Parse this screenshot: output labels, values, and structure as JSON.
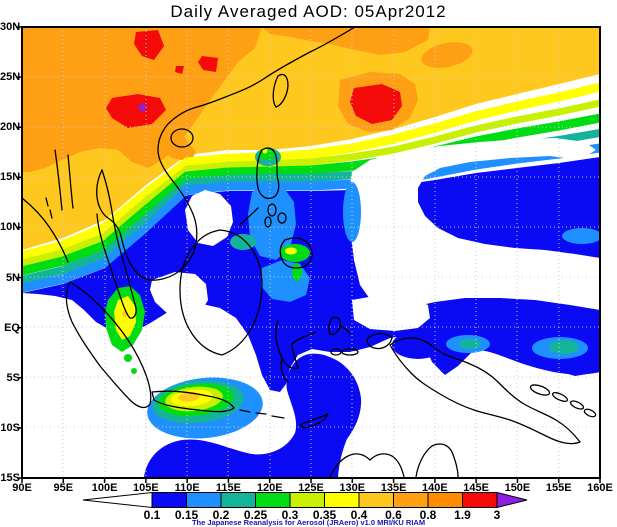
{
  "figure": {
    "title": "Daily Averaged AOD: 05Apr2012",
    "caption": "The Japanese Reanalysis for Aerosol (JRAero) v1.0 MRI/KU RIAM"
  },
  "chart_data": {
    "type": "heatmap",
    "title": "Daily Averaged AOD: 05Apr2012",
    "variable": "Aerosol Optical Depth (AOD), daily average",
    "date": "05Apr2012",
    "region": {
      "lon_range_deg_east": [
        90,
        160
      ],
      "lat_range_deg_north": [
        -15,
        30
      ]
    },
    "x_axis": {
      "ticks": [
        "90E",
        "95E",
        "100E",
        "105E",
        "110E",
        "115E",
        "120E",
        "125E",
        "130E",
        "135E",
        "140E",
        "145E",
        "150E",
        "155E",
        "160E"
      ]
    },
    "y_axis": {
      "ticks": [
        "30N",
        "25N",
        "20N",
        "15N",
        "10N",
        "5N",
        "EQ",
        "5S",
        "10S",
        "15S"
      ]
    },
    "grid": {
      "visible": true,
      "style": "dotted",
      "color": "#cccccc"
    },
    "colorbar": {
      "orientation": "horizontal",
      "boundaries": [
        "0.1",
        "0.15",
        "0.2",
        "0.25",
        "0.3",
        "0.35",
        "0.4",
        "0.6",
        "0.8",
        "1.9",
        "3"
      ],
      "colors": [
        "#0a0af5",
        "#1e90ff",
        "#14b49b",
        "#00dc14",
        "#c8f000",
        "#ffff00",
        "#ffc81e",
        "#ffa014",
        "#ff8c00",
        "#f50a0a"
      ],
      "under_color": "#ffffff",
      "over_color": "#8c1ee6"
    },
    "palette": {
      "blue": "#0a0af5",
      "dodger_blue": "#1e90ff",
      "teal": "#14b49b",
      "green": "#00dc14",
      "yellow_green": "#c8f000",
      "yellow": "#ffff00",
      "amber": "#ffc81e",
      "orange": "#ffa014",
      "dark_orange": "#ff8c00",
      "red": "#f50a0a",
      "purple": "#8c1ee6",
      "coastline": "#000000",
      "grid": "#cccccc",
      "background": "#ffffff"
    },
    "features": [
      "Heavy aerosol plume (AOD 0.6-3) over Myanmar, Thailand, Laos, northern Vietnam and southern China",
      "Red maxima (AOD 1.9-3) near 105E/28N, 112E/26N, 101-107E/20-23N and 130-136E/21-23N",
      "Small area above 3 (purple) near 104E/22N",
      "Transition band 0.15-0.4 sloping from ~13N at 105E up to ~22N at 160E",
      "AOD 0.1-0.2 over South China Sea, Philippines and western Pacific 5-15N",
      "Clear air (<0.1) over central South China Sea ~110-115E/8-14N, Philippine Sea 8-17N, equatorial west Pacific, Sumatra, SW Borneo, Banda/Arafura Seas and New Guinea",
      "Burning hotspot 0.3-0.6 over Java near 108-112E/7-8S with 0.15-0.25 ring",
      "Hotspot 0.3-0.45 over southern Malay Peninsula ~103E/1-4N",
      "Small 0.25-0.4 spots over northern Luzon and western Mindanao",
      "Patches 0.15-0.25 along northern New Guinea coast 140-160E/0-4S",
      "AOD 0.1-0.15 over NE Indian Ocean west of Sumatra and 92-108E south of 5S"
    ]
  }
}
